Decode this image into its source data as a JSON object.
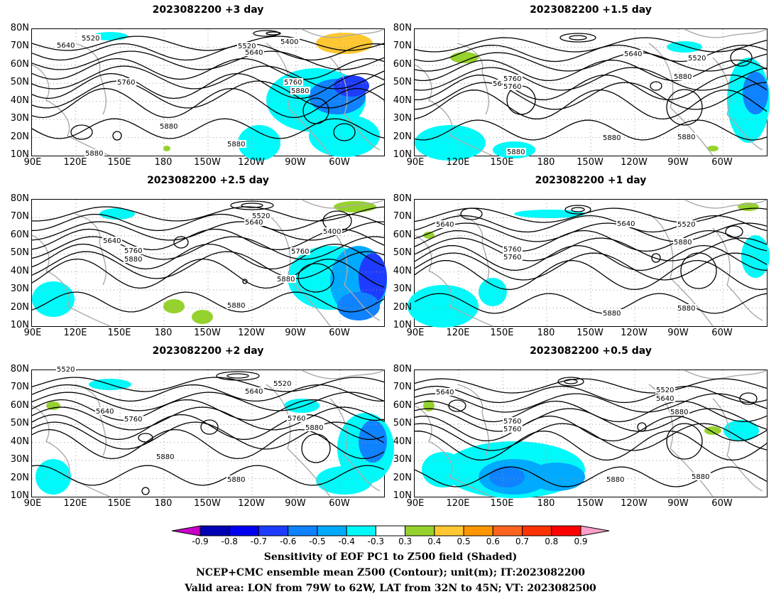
{
  "panels": [
    {
      "title": "2023082200 +3 day",
      "labels": [
        "5520",
        "5640",
        "5520",
        "5640",
        "5400",
        "5760",
        "5760",
        "5880",
        "5880",
        "5880",
        "5880"
      ]
    },
    {
      "title": "2023082200 +1.5 day",
      "labels": [
        "5640",
        "5520",
        "5640",
        "5760",
        "5760",
        "5880",
        "5880",
        "5880",
        "5880"
      ]
    },
    {
      "title": "2023082200 +2.5 day",
      "labels": [
        "5520",
        "5640",
        "5640",
        "5760",
        "5880",
        "5400",
        "5760",
        "5880",
        "5880"
      ]
    },
    {
      "title": "2023082200 +1 day",
      "labels": [
        "5640",
        "5640",
        "5520",
        "5760",
        "5760",
        "5880",
        "5880",
        "5880"
      ]
    },
    {
      "title": "2023082200 +2 day",
      "labels": [
        "5520",
        "5520",
        "5640",
        "5640",
        "5760",
        "5760",
        "5880",
        "5880",
        "5880"
      ]
    },
    {
      "title": "2023082200 +0.5 day",
      "labels": [
        "5640",
        "5520",
        "5640",
        "5760",
        "5760",
        "5880",
        "5880",
        "5880"
      ]
    }
  ],
  "lat_labels": [
    "80N",
    "70N",
    "60N",
    "50N",
    "40N",
    "30N",
    "20N",
    "10N"
  ],
  "lon_labels": [
    "90E",
    "120E",
    "150E",
    "180",
    "150W",
    "120W",
    "90W",
    "60W"
  ],
  "colorbar": {
    "labels": [
      "-0.9",
      "-0.8",
      "-0.7",
      "-0.6",
      "-0.5",
      "-0.4",
      "-0.3",
      "0.3",
      "0.4",
      "0.5",
      "0.6",
      "0.7",
      "0.8",
      "0.9"
    ],
    "colors": [
      "#0000b4",
      "#0000f0",
      "#1e3cff",
      "#0f82ff",
      "#00aaff",
      "#00fafa",
      "#ffffff",
      "#96d22d",
      "#ffc832",
      "#ff9600",
      "#ff641e",
      "#ff3200",
      "#ff0000"
    ],
    "low_end": "#c800c8",
    "high_end": "#ffa0c8"
  },
  "caption": {
    "line1": "Sensitivity of EOF PC1 to Z500 field (Shaded)",
    "line2": "NCEP+CMC ensemble mean Z500 (Contour); unit(m); IT:2023082200",
    "line3": "Valid area: LON from 79W to 62W, LAT from 32N to 45N; VT: 2023082500"
  }
}
